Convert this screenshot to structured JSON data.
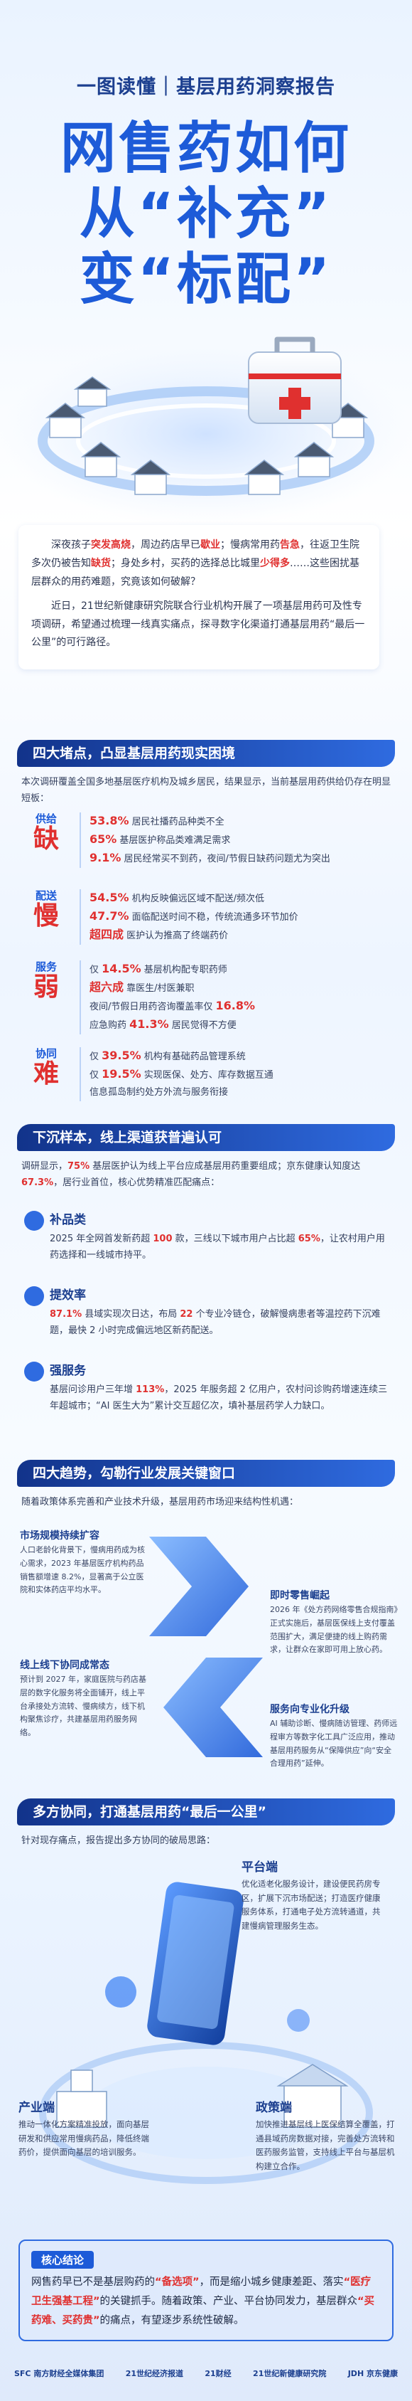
{
  "header": {
    "subtitle": "一图读懂｜基层用药洞察报告",
    "title_lines": [
      "网售药如何",
      "从“补充”",
      "变“标配”"
    ]
  },
  "intro": [
    [
      "深夜孩子",
      {
        "em": "突发高烧"
      },
      "，周边药店早已",
      {
        "em": "歇业"
      },
      "；慢病常用药",
      {
        "em": "告急"
      },
      "，往返卫生院多次仍被告知",
      {
        "em": "缺货"
      },
      "；身处乡村，买药的选择总比城里",
      {
        "em": "少得多"
      },
      "……这些困扰基层群众的用药难题，究竟该如何破解？"
    ],
    [
      "近日，21世纪新健康研究院联合行业机构开展了一项基层用药可及性专项调研，希望通过梳理一线真实痛点，探寻数字化渠道打通基层用药“最后一公里”的可行路径。"
    ]
  ],
  "section1": {
    "title": "四大堵点，凸显基层用药现实困境",
    "lead": "本次调研覆盖全国多地基层医疗机构及城乡居民，结果显示，当前基层用药供给仍存在明显短板：",
    "groups": [
      {
        "small": "供给",
        "big": "缺",
        "items": [
          [
            {
              "em": "53.8%"
            },
            " 居民社播药品种类不全"
          ],
          [
            {
              "em": "65%"
            },
            " 基层医护称品类难满足需求"
          ],
          [
            {
              "em": "9.1%"
            },
            " 居民经常买不到药，夜间/节假日缺药问题尤为突出"
          ]
        ]
      },
      {
        "small": "配送",
        "big": "慢",
        "items": [
          [
            {
              "em": "54.5%"
            },
            " 机构反映偏远区域不配送/频次低"
          ],
          [
            {
              "em": "47.7%"
            },
            " 面临配送时间不稳，传统流通多环节加价"
          ],
          [
            {
              "em": "超四成"
            },
            " 医护认为推高了终端药价"
          ]
        ]
      },
      {
        "small": "服务",
        "big": "弱",
        "items": [
          [
            "仅 ",
            {
              "em": "14.5%"
            },
            " 基层机构配专职药师"
          ],
          [
            {
              "em": "超六成"
            },
            " 靠医生/村医兼职"
          ],
          [
            "夜间/节假日用药咨询覆盖率仅 ",
            {
              "em": "16.8%"
            }
          ],
          [
            "应急购药 ",
            {
              "em": "41.3%"
            },
            " 居民觉得不方便"
          ]
        ]
      },
      {
        "small": "协同",
        "big": "难",
        "items": [
          [
            "仅 ",
            {
              "em": "39.5%"
            },
            " 机构有基础药品管理系统"
          ],
          [
            "仅 ",
            {
              "em": "19.5%"
            },
            " 实现医保、处方、库存数据互通"
          ],
          [
            "信息孤岛制约处方外流与服务衔接"
          ]
        ]
      }
    ]
  },
  "section2": {
    "title": "下沉样本，线上渠道获普遍认可",
    "lead": [
      "调研显示，",
      {
        "em": "75%"
      },
      " 基层医护认为线上平台应成基层用药重要组成；京东健康认知度达 ",
      {
        "em": "67.3%"
      },
      "，居行业首位，核心优势精准匹配痛点："
    ],
    "points": [
      {
        "title": "补品类",
        "body": [
          "2025 年全网首发新药超 ",
          {
            "em": "100"
          },
          " 款，三线以下城市用户占比超 ",
          {
            "em": "65%"
          },
          "，让农村用户用药选择和一线城市持平。"
        ]
      },
      {
        "title": "提效率",
        "body": [
          {
            "em": "87.1%"
          },
          " 县域实现次日达，布局 ",
          {
            "em": "22"
          },
          " 个专业冷链仓，破解慢病患者等温控药下沉难题，最快 2 小时完成偏远地区新药配送。"
        ]
      },
      {
        "title": "强服务",
        "body": [
          "基层问诊用户三年增 ",
          {
            "em": "113%"
          },
          "，2025 年服务超 2 亿用户，农村问诊购药增速连续三年超城市；“AI 医生大为”累计交互超亿次，填补基层药学人力缺口。"
        ]
      }
    ]
  },
  "section3": {
    "title": "四大趋势，勾勒行业发展关键窗口",
    "lead": "随着政策体系完善和产业技术升级，基层用药市场迎来结构性机遇：",
    "trends": [
      {
        "title": "市场规模持续扩容",
        "body": "人口老龄化背景下，慢病用药成为核心需求，2023 年基层医疗机构药品销售额增速 8.2%，显著高于公立医院和实体药店平均水平。"
      },
      {
        "title": "即时零售崛起",
        "body": "2026 年《处方药网络零售合规指南》正式实施后，基层医保线上支付覆盖范围扩大，满足便捷的线上购药需求，让群众在家即可用上放心药。"
      },
      {
        "title": "线上线下协同成常态",
        "body": "预计到 2027 年，家庭医院与药店基层的数字化服务将全面铺开，线上平台承接处方流转、慢病续方，线下机构聚焦诊疗，共建基层用药服务网络。"
      },
      {
        "title": "服务向专业化升级",
        "body": "AI 辅助诊断、慢病随访管理、药师远程审方等数字化工具广泛应用，推动基层用药服务从“保障供应”向“安全合理用药”延伸。"
      }
    ]
  },
  "section4": {
    "title": "多方协同，打通基层用药“最后一公里”",
    "lead": "针对现存痛点，报告提出多方协同的破局思路：",
    "parties": [
      {
        "title": "平台端",
        "body": "优化适老化服务设计，建设便民药房专区，扩展下沉市场配送；打造医疗健康服务体系，打通电子处方流转通道，共建慢病管理服务生态。"
      },
      {
        "title": "产业端",
        "body": "推动一体化方案精准投放，面向基层研发和供应常用慢病药品，降低终端药价，提供面向基层的培训服务。"
      },
      {
        "title": "政策端",
        "body": "加快推进基层线上医保结算全覆盖，打通县域药房数据对接，完善处方流转和医药服务监管，支持线上平台与基层机构建立合作。"
      }
    ]
  },
  "conclusion": {
    "title": "核心结论",
    "body": [
      "网售药早已不是基层购药的",
      {
        "em": "“备选项”"
      },
      "，而是缩小城乡健康差距、落实",
      {
        "em": "“医疗卫生强基工程”"
      },
      "的关键抓手。随着政策、产业、平台协同发力，基层群众",
      {
        "em": "“买药难、买药贵”"
      },
      "的痛点，有望逐步系统性破解。"
    ]
  },
  "footer": [
    "SFC 南方财经全媒体集团",
    "21世纪经济报道",
    "21财经",
    "21世纪新健康研究院",
    "JDH 京东健康"
  ]
}
